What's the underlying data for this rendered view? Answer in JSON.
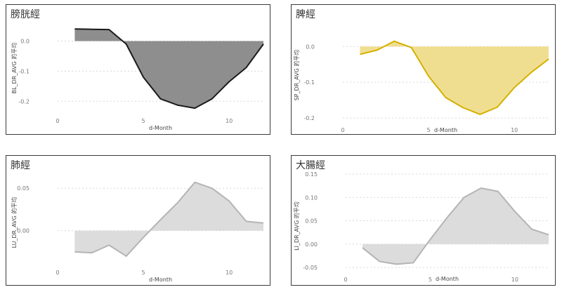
{
  "chart_data": [
    {
      "type": "area",
      "title": "膀胱經",
      "xlabel": "d-Month",
      "ylabel": "BL_DR_AVG 的平均",
      "x": [
        1,
        2,
        3,
        4,
        5,
        6,
        7,
        8,
        9,
        10,
        11,
        12
      ],
      "values": [
        0.04,
        0.039,
        0.038,
        -0.01,
        -0.12,
        -0.192,
        -0.213,
        -0.223,
        -0.192,
        -0.135,
        -0.088,
        -0.01
      ],
      "xlim": [
        0,
        12
      ],
      "ylim": [
        -0.225,
        0.05
      ],
      "xticks": [
        0,
        5,
        10
      ],
      "yticks": [
        0.0,
        -0.1,
        -0.2
      ],
      "ytick_labels": [
        "0.0",
        "-0.1",
        "-0.2"
      ],
      "line_color": "#1a1a1a",
      "fill_color": "#8e8e8e",
      "grid": true
    },
    {
      "type": "area",
      "title": "脾經",
      "xlabel": "d-Month",
      "ylabel": "SP_DR_AVG 的平均",
      "x": [
        1,
        2,
        3,
        4,
        5,
        6,
        7,
        8,
        9,
        10,
        11,
        12
      ],
      "values": [
        -0.022,
        -0.01,
        0.015,
        -0.003,
        -0.083,
        -0.143,
        -0.171,
        -0.19,
        -0.17,
        -0.115,
        -0.072,
        -0.035
      ],
      "xlim": [
        0,
        12
      ],
      "ylim": [
        -0.2,
        0.03
      ],
      "xticks": [
        0,
        5,
        10
      ],
      "yticks": [
        0.0,
        -0.1,
        -0.2
      ],
      "ytick_labels": [
        "0.0",
        "-0.1",
        "-0.2"
      ],
      "line_color": "#d4b000",
      "fill_color": "#f0de90",
      "grid": true
    },
    {
      "type": "area",
      "title": "肺經",
      "xlabel": "d-Month",
      "ylabel": "LU_DR_AVG 的平均",
      "x": [
        1,
        2,
        3,
        4,
        5,
        6,
        7,
        8,
        9,
        10,
        11,
        12
      ],
      "values": [
        -0.025,
        -0.026,
        -0.017,
        -0.03,
        -0.008,
        0.013,
        0.033,
        0.057,
        0.05,
        0.035,
        0.011,
        0.009
      ],
      "xlim": [
        0,
        12
      ],
      "ylim": [
        -0.035,
        0.07
      ],
      "xticks": [
        0,
        5,
        10
      ],
      "yticks": [
        0.05,
        0.0
      ],
      "ytick_labels": [
        "0.05",
        "0.00"
      ],
      "line_color": "#b4b4b4",
      "fill_color": "#dcdcdc",
      "grid": true
    },
    {
      "type": "area",
      "title": "大腸經",
      "xlabel": "d-Month",
      "ylabel": "LI_DR_AVG 的平均",
      "x": [
        1,
        2,
        3,
        4,
        5,
        6,
        7,
        8,
        9,
        10,
        11,
        12
      ],
      "values": [
        -0.008,
        -0.037,
        -0.043,
        -0.04,
        0.01,
        0.057,
        0.1,
        0.12,
        0.113,
        0.07,
        0.032,
        0.02
      ],
      "xlim": [
        0,
        12
      ],
      "ylim": [
        -0.05,
        0.15
      ],
      "xticks": [
        0,
        5,
        10
      ],
      "yticks": [
        0.15,
        0.1,
        0.05,
        0.0,
        -0.05
      ],
      "ytick_labels": [
        "0.15",
        "0.10",
        "0.05",
        "0.00",
        "-0.05"
      ],
      "line_color": "#b4b4b4",
      "fill_color": "#dcdcdc",
      "grid": true
    }
  ]
}
